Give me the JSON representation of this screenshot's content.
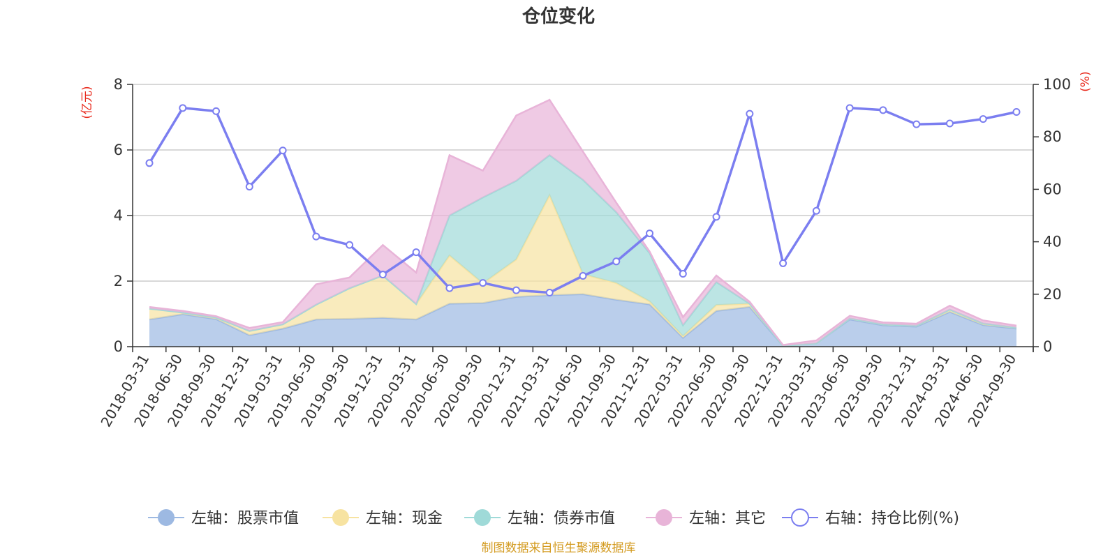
{
  "chart_data": {
    "type": "area",
    "title": "仓位变化",
    "left_axis_unit": "(亿元)",
    "right_axis_unit": "(%)",
    "ylim_left": [
      0,
      8
    ],
    "yticks_left": [
      "0",
      "2",
      "4",
      "6",
      "8"
    ],
    "ylim_right": [
      0,
      100
    ],
    "yticks_right": [
      "0",
      "20",
      "40",
      "60",
      "80",
      "100"
    ],
    "grid": true,
    "legend_position": "bottom",
    "x": [
      "2018-03-31",
      "2018-06-30",
      "2018-09-30",
      "2018-12-31",
      "2019-03-31",
      "2019-06-30",
      "2019-09-30",
      "2019-12-31",
      "2020-03-31",
      "2020-06-30",
      "2020-09-30",
      "2020-12-31",
      "2021-03-31",
      "2021-06-30",
      "2021-09-30",
      "2021-12-31",
      "2022-03-31",
      "2022-06-30",
      "2022-09-30",
      "2022-12-31",
      "2023-03-31",
      "2023-06-30",
      "2023-09-30",
      "2023-12-31",
      "2024-03-31",
      "2024-06-30",
      "2024-09-30"
    ],
    "series": [
      {
        "name": "左轴：股票市值",
        "axis": "left",
        "kind": "stacked-area",
        "color": "#9db9e2",
        "values": [
          0.83,
          0.99,
          0.84,
          0.35,
          0.55,
          0.83,
          0.85,
          0.88,
          0.83,
          1.31,
          1.33,
          1.52,
          1.57,
          1.6,
          1.43,
          1.29,
          0.27,
          1.09,
          1.21,
          0.02,
          0.1,
          0.83,
          0.65,
          0.61,
          1.06,
          0.66,
          0.55
        ]
      },
      {
        "name": "左轴：现金",
        "axis": "left",
        "kind": "stacked-area",
        "color": "#f7e3a1",
        "values": [
          0.33,
          0.05,
          0.05,
          0.13,
          0.13,
          0.45,
          0.93,
          1.29,
          0.47,
          1.47,
          0.6,
          1.14,
          3.05,
          0.61,
          0.51,
          0.09,
          0.05,
          0.18,
          0.1,
          0.0,
          0.0,
          0.03,
          0.03,
          0.03,
          0.07,
          0.05,
          0.03
        ]
      },
      {
        "name": "左轴：债券市值",
        "axis": "left",
        "kind": "stacked-area",
        "color": "#9fdad8",
        "values": [
          0,
          0,
          0,
          0,
          0,
          0,
          0,
          0,
          0.0,
          1.22,
          2.62,
          2.4,
          1.22,
          2.88,
          2.16,
          1.47,
          0.33,
          0.7,
          0.0,
          0,
          0,
          0,
          0,
          0,
          0,
          0,
          0
        ]
      },
      {
        "name": "左轴：其它",
        "axis": "left",
        "kind": "stacked-area",
        "color": "#e8b4d8",
        "values": [
          0.05,
          0.05,
          0.04,
          0.09,
          0.07,
          0.62,
          0.33,
          0.93,
          0.96,
          1.84,
          0.82,
          1.99,
          1.69,
          0.86,
          0.29,
          0.05,
          0.25,
          0.2,
          0.06,
          0.03,
          0.09,
          0.08,
          0.06,
          0.06,
          0.12,
          0.09,
          0.06
        ]
      },
      {
        "name": "右轴：持仓比例(%)",
        "axis": "right",
        "kind": "line",
        "color": "#7b7ef0",
        "values": [
          70.0,
          91.0,
          89.8,
          61.0,
          74.8,
          42.0,
          38.8,
          27.5,
          36.0,
          22.3,
          24.3,
          21.5,
          20.6,
          27.0,
          32.5,
          43.2,
          27.8,
          49.5,
          88.8,
          31.8,
          51.8,
          91.0,
          90.2,
          84.8,
          85.1,
          86.8,
          89.5
        ]
      }
    ]
  },
  "footer": {
    "source": "制图数据来自恒生聚源数据库"
  }
}
